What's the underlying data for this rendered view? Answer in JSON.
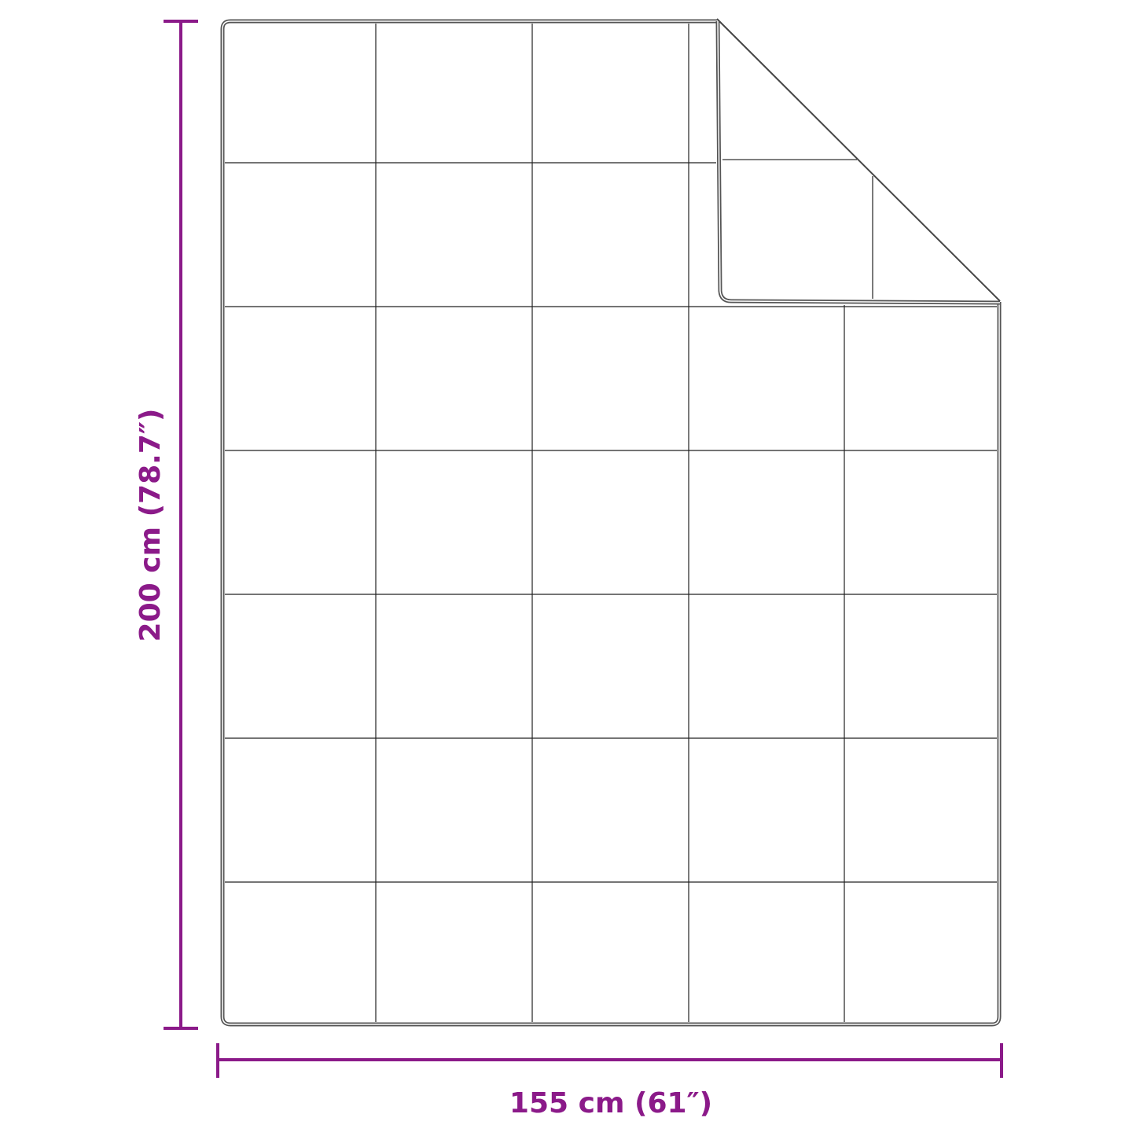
{
  "dimensions": {
    "height_label": "200 cm (78.7″)",
    "width_label": "155 cm (61″)"
  },
  "colors": {
    "dimension": "#8b1a89",
    "outline": "#555555",
    "grid": "#222222"
  }
}
